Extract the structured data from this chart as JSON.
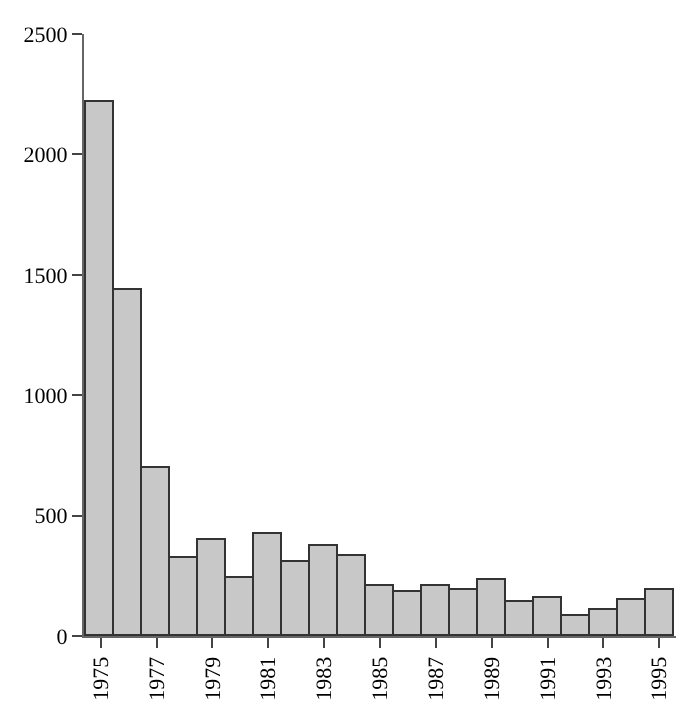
{
  "chart_data": {
    "type": "bar",
    "categories": [
      "1975",
      null,
      "1977",
      null,
      "1979",
      null,
      "1981",
      null,
      "1983",
      null,
      "1985",
      null,
      "1987",
      null,
      "1989",
      null,
      "1991",
      null,
      "1993",
      null,
      "1995"
    ],
    "values": [
      2220,
      1440,
      700,
      320,
      400,
      240,
      420,
      310,
      370,
      330,
      210,
      180,
      210,
      190,
      230,
      140,
      160,
      80,
      110,
      150,
      190
    ],
    "color": "#c8c8c8",
    "ylim": [
      0,
      2500
    ],
    "yticks": [
      0,
      500,
      1000,
      1500,
      2000,
      2500
    ],
    "legend": false
  }
}
